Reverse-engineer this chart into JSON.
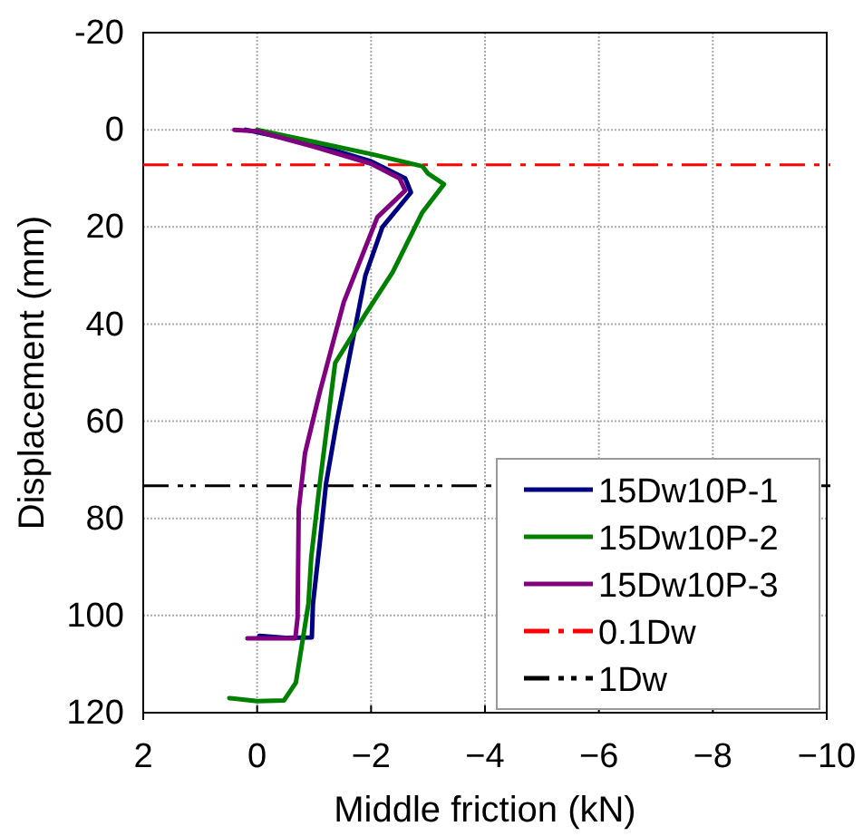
{
  "chart_data": {
    "type": "line",
    "xlabel": "Middle friction (kN)",
    "ylabel": "Displacement (mm)",
    "xlim": [
      2,
      -10
    ],
    "ylim": [
      120,
      -20
    ],
    "xticks": [
      2,
      0,
      {
        "value": -2,
        "label": "−2"
      },
      {
        "value": -4,
        "label": "−4"
      },
      {
        "value": -6,
        "label": "−6"
      },
      {
        "value": -8,
        "label": "−8"
      },
      {
        "value": -10,
        "label": "−10"
      }
    ],
    "yticks": [
      -20,
      0,
      20,
      40,
      60,
      80,
      100,
      120
    ],
    "grid": true,
    "legend": "bottom right",
    "line_style": "solid",
    "marker": "none",
    "series": [
      {
        "name": "15Dw10P-1",
        "color": "#000080",
        "x": [
          0.2,
          -1,
          -2,
          -2.6,
          -2.7,
          -2.2,
          -1.9,
          -1.6,
          -1.4,
          -1.21,
          -1.1,
          -0.98,
          -0.96,
          -0.5,
          -0.04
        ],
        "values": [
          0,
          3,
          6.5,
          10,
          12.9,
          20,
          30,
          48,
          60,
          72.8,
          85,
          97.6,
          104.5,
          104.6,
          104.2
        ]
      },
      {
        "name": "15Dw10P-2",
        "color": "#008000",
        "x": [
          0,
          -1,
          -2,
          -2.9,
          -3.0,
          -3.28,
          -2.9,
          -2.38,
          -1.9,
          -1.37,
          -1.1,
          -0.95,
          -0.9,
          -0.8,
          -0.68,
          -0.47,
          0,
          0.49
        ],
        "values": [
          0,
          2.5,
          5,
          7.5,
          9,
          11.2,
          17,
          29.3,
          38,
          48,
          72.8,
          88,
          97.6,
          105,
          113.8,
          117.5,
          117.6,
          117
        ]
      },
      {
        "name": "15Dw10P-3",
        "color": "#800080",
        "x": [
          0.4,
          0,
          -1,
          -2,
          -2.5,
          -2.6,
          -2.11,
          -1.52,
          -1.1,
          -0.84,
          -0.73,
          -0.71,
          -0.67,
          0.17
        ],
        "values": [
          0,
          0.3,
          3.5,
          7,
          10,
          12.5,
          18,
          35.5,
          54,
          66.6,
          78.1,
          100.4,
          104.7,
          104.7
        ]
      }
    ],
    "ref_lines": [
      {
        "axis": "y",
        "value": 7.2,
        "label": "0.1Dw",
        "color": "#ff0000",
        "line_style": "dashdot"
      },
      {
        "axis": "y",
        "value": 73.3,
        "label": "1Dw",
        "color": "#000000",
        "line_style": "dashdotdot"
      }
    ]
  }
}
